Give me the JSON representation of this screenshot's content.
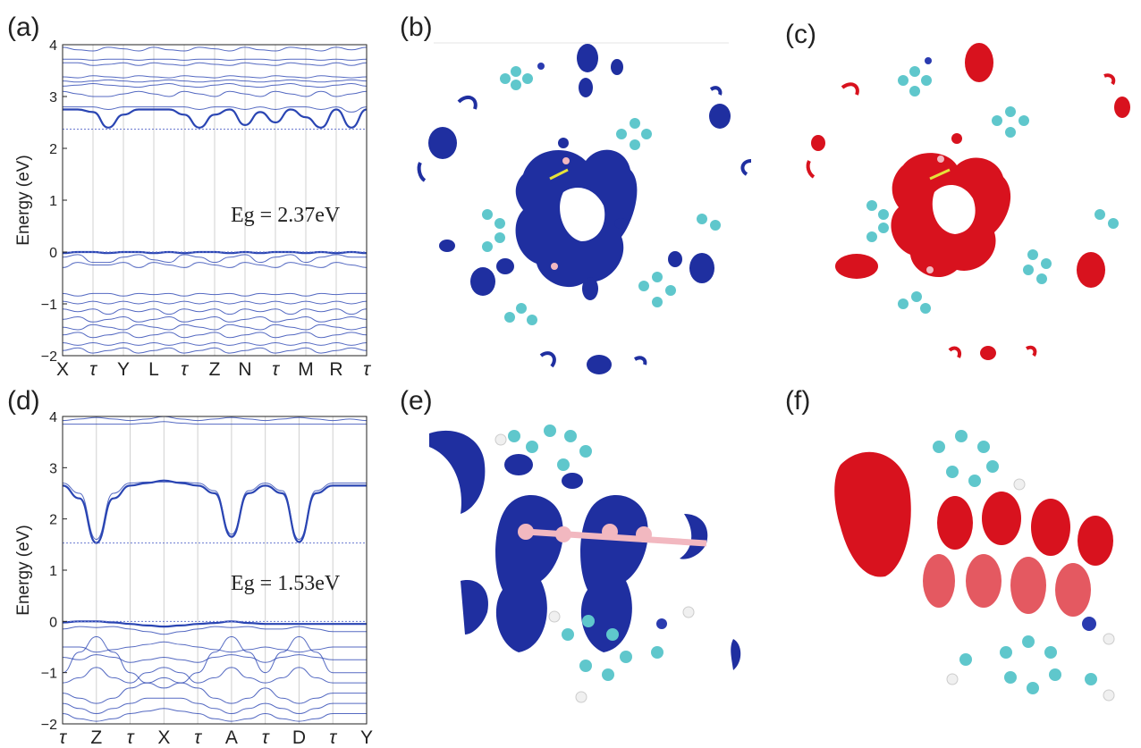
{
  "panels": {
    "a": "(a)",
    "b": "(b)",
    "c": "(c)",
    "d": "(d)",
    "e": "(e)",
    "f": "(f)"
  },
  "colors": {
    "band": "#2a45b3",
    "homo_density": "#1f2fa0",
    "lumo_density": "#d8121e",
    "carbon": "#5fc7cc",
    "nitrogen": "#2a3bb0",
    "hydrogen": "#f0f0f0",
    "boron": "#f2b8c0",
    "bond": "#e6e23a"
  },
  "chart_data": [
    {
      "type": "line",
      "ylabel": "Energy (eV)",
      "ylim": [
        -2,
        4
      ],
      "yticks": [
        "4",
        "3",
        "2",
        "1",
        "0",
        "−1",
        "−2"
      ],
      "xticks": [
        "X",
        "τ",
        "Y",
        "L",
        "τ",
        "Z",
        "N",
        "τ",
        "M",
        "R",
        "τ"
      ],
      "annotation": "Eg = 2.37eV",
      "cbm": 2.37,
      "vbm": 0.0,
      "conduction_bands": [
        [
          2.75,
          2.75,
          2.7,
          2.4,
          2.65,
          2.75,
          2.75,
          2.75,
          2.65,
          2.4,
          2.65,
          2.75,
          2.45,
          2.7,
          2.5,
          2.75,
          2.6,
          2.4,
          2.75,
          2.4,
          2.75
        ],
        [
          2.8,
          2.8,
          2.8,
          2.75,
          2.8,
          2.8,
          2.8,
          2.8,
          2.8,
          2.75,
          2.8,
          2.8,
          2.75,
          2.8,
          2.75,
          2.8,
          2.8,
          2.75,
          2.8,
          2.7,
          2.8
        ],
        [
          3.1,
          3.05,
          3.0,
          3.0,
          3.05,
          3.1,
          3.05,
          3.0,
          3.1,
          3.05,
          3.0,
          3.1,
          3.05,
          3.0,
          3.1,
          3.05,
          3.0,
          3.1,
          3.0,
          3.05,
          3.1
        ],
        [
          3.2,
          3.22,
          3.25,
          3.22,
          3.2,
          3.18,
          3.22,
          3.25,
          3.2,
          3.18,
          3.22,
          3.25,
          3.2,
          3.18,
          3.22,
          3.25,
          3.2,
          3.18,
          3.22,
          3.25,
          3.2
        ],
        [
          3.3,
          3.28,
          3.3,
          3.32,
          3.3,
          3.28,
          3.3,
          3.32,
          3.3,
          3.28,
          3.3,
          3.32,
          3.3,
          3.28,
          3.3,
          3.32,
          3.3,
          3.28,
          3.3,
          3.32,
          3.3
        ],
        [
          3.38,
          3.36,
          3.4,
          3.38,
          3.36,
          3.4,
          3.38,
          3.36,
          3.4,
          3.38,
          3.36,
          3.4,
          3.38,
          3.36,
          3.4,
          3.38,
          3.36,
          3.4,
          3.38,
          3.36,
          3.38
        ],
        [
          3.65,
          3.65,
          3.6,
          3.62,
          3.65,
          3.6,
          3.65,
          3.62,
          3.6,
          3.65,
          3.62,
          3.6,
          3.65,
          3.62,
          3.6,
          3.65,
          3.62,
          3.6,
          3.65,
          3.6,
          3.65
        ],
        [
          3.72,
          3.72,
          3.7,
          3.72,
          3.72,
          3.7,
          3.72,
          3.72,
          3.7,
          3.72,
          3.72,
          3.7,
          3.72,
          3.72,
          3.7,
          3.72,
          3.72,
          3.7,
          3.72,
          3.7,
          3.72
        ],
        [
          3.95,
          3.9,
          3.88,
          3.95,
          3.92,
          3.88,
          3.95,
          3.9,
          3.88,
          3.95,
          3.92,
          3.88,
          3.95,
          3.9,
          3.88,
          3.95,
          3.92,
          3.88,
          3.95,
          3.9,
          3.95
        ]
      ],
      "valence_bands": [
        [
          -0.02,
          0.0,
          0.0,
          -0.02,
          0.0,
          0.0,
          -0.02,
          0.0,
          -0.02,
          0.0,
          0.0,
          -0.02,
          0.0,
          -0.02,
          0.0,
          0.0,
          -0.02,
          0.0,
          -0.02,
          0.0,
          -0.02
        ],
        [
          -0.1,
          -0.05,
          -0.2,
          -0.2,
          -0.1,
          -0.05,
          -0.15,
          -0.2,
          -0.05,
          -0.1,
          -0.2,
          -0.1,
          -0.05,
          -0.2,
          -0.1,
          -0.05,
          -0.2,
          -0.1,
          -0.05,
          -0.1,
          -0.1
        ],
        [
          -0.3,
          -0.2,
          -0.25,
          -0.25,
          -0.2,
          -0.3,
          -0.2,
          -0.25,
          -0.3,
          -0.2,
          -0.25,
          -0.3,
          -0.2,
          -0.25,
          -0.3,
          -0.2,
          -0.25,
          -0.3,
          -0.2,
          -0.25,
          -0.3
        ],
        [
          -0.8,
          -0.85,
          -0.8,
          -0.8,
          -0.85,
          -0.8,
          -0.82,
          -0.8,
          -0.85,
          -0.8,
          -0.82,
          -0.8,
          -0.85,
          -0.8,
          -0.82,
          -0.8,
          -0.85,
          -0.8,
          -0.82,
          -0.8,
          -0.8
        ],
        [
          -0.95,
          -1.0,
          -0.95,
          -1.0,
          -0.95,
          -1.0,
          -0.95,
          -1.0,
          -0.95,
          -1.0,
          -0.95,
          -1.0,
          -0.95,
          -1.0,
          -0.95,
          -1.0,
          -0.95,
          -1.0,
          -0.95,
          -1.0,
          -0.95
        ],
        [
          -1.1,
          -1.15,
          -1.1,
          -1.2,
          -1.1,
          -1.15,
          -1.1,
          -1.2,
          -1.1,
          -1.15,
          -1.1,
          -1.2,
          -1.1,
          -1.15,
          -1.1,
          -1.2,
          -1.1,
          -1.15,
          -1.1,
          -1.2,
          -1.1
        ],
        [
          -1.3,
          -1.25,
          -1.35,
          -1.3,
          -1.25,
          -1.35,
          -1.3,
          -1.25,
          -1.35,
          -1.3,
          -1.25,
          -1.35,
          -1.3,
          -1.25,
          -1.35,
          -1.3,
          -1.25,
          -1.35,
          -1.3,
          -1.25,
          -1.3
        ],
        [
          -1.45,
          -1.5,
          -1.4,
          -1.45,
          -1.5,
          -1.4,
          -1.45,
          -1.5,
          -1.4,
          -1.45,
          -1.5,
          -1.4,
          -1.45,
          -1.5,
          -1.4,
          -1.45,
          -1.5,
          -1.4,
          -1.45,
          -1.5,
          -1.45
        ],
        [
          -1.6,
          -1.55,
          -1.65,
          -1.6,
          -1.55,
          -1.65,
          -1.6,
          -1.55,
          -1.65,
          -1.6,
          -1.55,
          -1.65,
          -1.6,
          -1.55,
          -1.65,
          -1.6,
          -1.55,
          -1.65,
          -1.6,
          -1.55,
          -1.6
        ],
        [
          -1.75,
          -1.8,
          -1.75,
          -1.8,
          -1.75,
          -1.8,
          -1.75,
          -1.8,
          -1.75,
          -1.8,
          -1.75,
          -1.8,
          -1.75,
          -1.8,
          -1.75,
          -1.8,
          -1.75,
          -1.8,
          -1.75,
          -1.8,
          -1.75
        ],
        [
          -1.9,
          -1.85,
          -1.95,
          -1.9,
          -1.85,
          -1.95,
          -1.9,
          -1.85,
          -1.95,
          -1.9,
          -1.85,
          -1.95,
          -1.9,
          -1.85,
          -1.95,
          -1.9,
          -1.85,
          -1.95,
          -1.9,
          -1.85,
          -1.9
        ]
      ]
    },
    {
      "type": "line",
      "ylabel": "Energy (eV)",
      "ylim": [
        -2,
        4
      ],
      "yticks": [
        "4",
        "3",
        "2",
        "1",
        "0",
        "−1",
        "−2"
      ],
      "xticks": [
        "τ",
        "Z",
        "τ",
        "X",
        "τ",
        "A",
        "τ",
        "D",
        "τ",
        "Y"
      ],
      "annotation": "Eg = 1.53eV",
      "cbm": 1.53,
      "vbm": 0.0,
      "conduction_bands": [
        [
          2.65,
          2.4,
          1.53,
          2.4,
          2.65,
          2.7,
          2.75,
          2.7,
          2.65,
          2.5,
          1.65,
          2.5,
          2.65,
          2.5,
          1.55,
          2.5,
          2.65,
          2.65,
          2.65
        ],
        [
          2.7,
          2.5,
          1.6,
          2.5,
          2.7,
          2.72,
          2.72,
          2.72,
          2.7,
          2.55,
          1.7,
          2.55,
          2.7,
          2.55,
          1.6,
          2.55,
          2.7,
          2.7,
          2.7
        ],
        [
          3.85,
          3.85,
          3.85,
          3.85,
          3.85,
          3.87,
          3.9,
          3.87,
          3.85,
          3.85,
          3.85,
          3.85,
          3.85,
          3.85,
          3.85,
          3.85,
          3.85,
          3.85,
          3.85
        ],
        [
          3.92,
          3.95,
          3.98,
          3.95,
          3.92,
          3.95,
          4.0,
          3.95,
          3.92,
          3.95,
          3.98,
          3.95,
          3.92,
          3.95,
          3.98,
          3.95,
          3.92,
          3.95,
          3.92
        ]
      ],
      "valence_bands": [
        [
          -0.02,
          0.0,
          0.0,
          -0.02,
          -0.05,
          -0.08,
          -0.1,
          -0.08,
          -0.05,
          -0.03,
          0.0,
          -0.03,
          -0.05,
          -0.05,
          -0.05,
          -0.05,
          -0.05,
          -0.05,
          -0.05
        ],
        [
          -0.15,
          -0.1,
          -0.12,
          -0.1,
          -0.15,
          -0.2,
          -0.25,
          -0.2,
          -0.15,
          -0.1,
          -0.12,
          -0.1,
          -0.15,
          -0.15,
          -0.1,
          -0.15,
          -0.2,
          -0.2,
          -0.2
        ],
        [
          -1.0,
          -0.6,
          -0.3,
          -0.6,
          -1.0,
          -1.2,
          -1.3,
          -1.2,
          -1.0,
          -0.6,
          -0.3,
          -0.6,
          -1.0,
          -0.6,
          -0.3,
          -0.6,
          -1.0,
          -1.0,
          -1.0
        ],
        [
          -0.5,
          -0.5,
          -0.6,
          -0.55,
          -0.5,
          -0.45,
          -0.4,
          -0.45,
          -0.5,
          -0.55,
          -0.6,
          -0.55,
          -0.5,
          -0.55,
          -0.6,
          -0.55,
          -0.5,
          -0.5,
          -0.5
        ],
        [
          -0.7,
          -0.75,
          -0.65,
          -0.7,
          -0.8,
          -0.75,
          -0.7,
          -0.75,
          -0.8,
          -0.7,
          -0.65,
          -0.7,
          -0.8,
          -0.7,
          -0.65,
          -0.7,
          -0.75,
          -0.75,
          -0.75
        ],
        [
          -1.2,
          -1.1,
          -0.9,
          -1.1,
          -1.2,
          -1.0,
          -0.9,
          -1.0,
          -1.2,
          -1.1,
          -0.9,
          -1.1,
          -1.2,
          -1.1,
          -0.9,
          -1.1,
          -1.2,
          -1.2,
          -1.2
        ],
        [
          -1.4,
          -1.5,
          -1.6,
          -1.5,
          -1.3,
          -1.2,
          -1.1,
          -1.2,
          -1.3,
          -1.5,
          -1.6,
          -1.5,
          -1.3,
          -1.5,
          -1.6,
          -1.5,
          -1.4,
          -1.4,
          -1.4
        ],
        [
          -1.6,
          -1.7,
          -1.8,
          -1.7,
          -1.6,
          -1.5,
          -1.5,
          -1.5,
          -1.6,
          -1.7,
          -1.8,
          -1.7,
          -1.6,
          -1.7,
          -1.8,
          -1.7,
          -1.6,
          -1.6,
          -1.6
        ],
        [
          -1.8,
          -1.9,
          -1.95,
          -1.9,
          -1.8,
          -1.75,
          -1.7,
          -1.75,
          -1.8,
          -1.9,
          -1.95,
          -1.9,
          -1.8,
          -1.9,
          -1.95,
          -1.9,
          -1.8,
          -1.8,
          -1.8
        ]
      ]
    }
  ]
}
